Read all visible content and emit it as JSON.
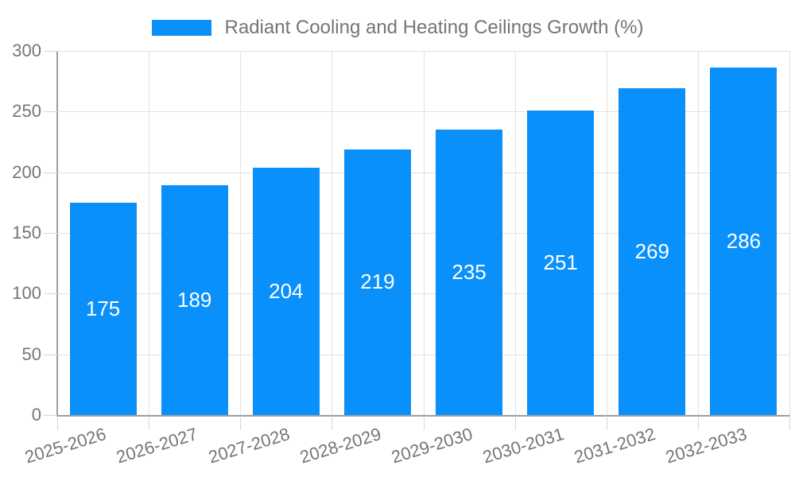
{
  "chart_data": {
    "type": "bar",
    "title": "Radiant Cooling and Heating Ceilings Growth (%)",
    "categories": [
      "2025-2026",
      "2026-2027",
      "2027-2028",
      "2028-2029",
      "2029-2030",
      "2030-2031",
      "2031-2032",
      "2032-2033"
    ],
    "values": [
      175,
      189,
      204,
      219,
      235,
      251,
      269,
      286
    ],
    "xlabel": "",
    "ylabel": "",
    "ylim": [
      0,
      300
    ],
    "yticks": [
      0,
      50,
      100,
      150,
      200,
      250,
      300
    ],
    "grid": true,
    "legend_position": "top-center",
    "bar_color": "#0a90fa",
    "bar_label_color": "#ffffff",
    "axis_text_color": "#757575",
    "gridline_color": "#e2e2e2",
    "axis_line_color": "#9e9e9e"
  }
}
